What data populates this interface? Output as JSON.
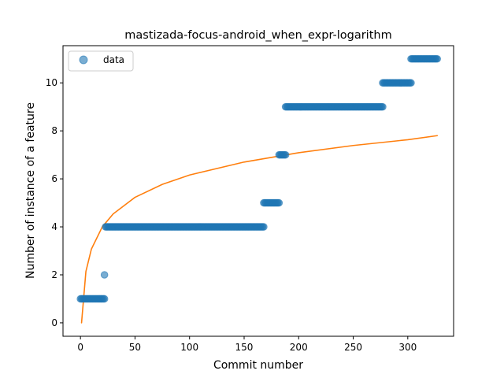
{
  "chart_data": {
    "type": "scatter",
    "title": "mastizada-focus-android_when_expr-logarithm",
    "xlabel": "Commit number",
    "ylabel": "Number of instance of a feature",
    "xlim": [
      -16,
      342
    ],
    "ylim": [
      -0.56,
      11.55
    ],
    "xticks": [
      0,
      50,
      100,
      150,
      200,
      250,
      300
    ],
    "yticks": [
      0,
      2,
      4,
      6,
      8,
      10
    ],
    "grid": false,
    "legend": {
      "placement": "top-left",
      "entries": [
        {
          "label": "data"
        }
      ]
    },
    "colors": {
      "points": "#1f77b4",
      "fit": "#ff7f0e"
    },
    "series": [
      {
        "name": "data",
        "kind": "scatter",
        "segments": [
          {
            "x_start": 0,
            "x_end": 22,
            "y": 1
          },
          {
            "x_start": 22,
            "x_end": 22,
            "y": 2
          },
          {
            "x_start": 23,
            "x_end": 168,
            "y": 4
          },
          {
            "x_start": 168,
            "x_end": 182,
            "y": 5
          },
          {
            "x_start": 182,
            "x_end": 188,
            "y": 7
          },
          {
            "x_start": 188,
            "x_end": 277,
            "y": 9
          },
          {
            "x_start": 277,
            "x_end": 303,
            "y": 10
          },
          {
            "x_start": 303,
            "x_end": 327,
            "y": 11
          }
        ]
      },
      {
        "name": "",
        "kind": "line",
        "function": "log",
        "x": [
          1,
          5,
          10,
          20,
          30,
          50,
          75,
          100,
          150,
          200,
          250,
          300,
          327
        ],
        "y": [
          0,
          2.14,
          3.07,
          4.0,
          4.54,
          5.23,
          5.77,
          6.16,
          6.7,
          7.09,
          7.39,
          7.63,
          7.8
        ]
      }
    ]
  }
}
